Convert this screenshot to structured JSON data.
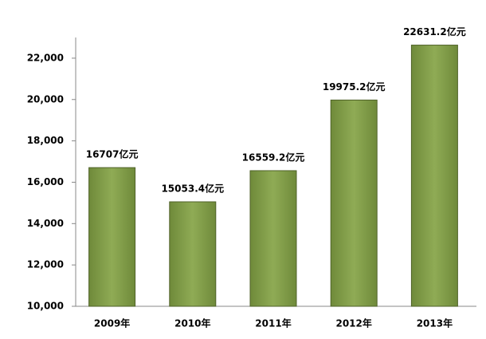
{
  "chart_data": {
    "type": "bar",
    "categories": [
      "2009年",
      "2010年",
      "2011年",
      "2012年",
      "2013年"
    ],
    "values": [
      16707,
      15053.4,
      16559.2,
      19975.2,
      22631.2
    ],
    "value_labels": [
      "16707亿元",
      "15053.4亿元",
      "16559.2亿元",
      "19975.2亿元",
      "22631.2亿元"
    ],
    "color": "#86a14e",
    "ylim": [
      10000,
      23000
    ],
    "yticks": [
      {
        "value": 10000,
        "label": "10,000"
      },
      {
        "value": 12000,
        "label": "12,000"
      },
      {
        "value": 14000,
        "label": "14,000"
      },
      {
        "value": 16000,
        "label": "16,000"
      },
      {
        "value": 18000,
        "label": "18,000"
      },
      {
        "value": 20000,
        "label": "20,000"
      },
      {
        "value": 22000,
        "label": "22,000"
      }
    ]
  }
}
